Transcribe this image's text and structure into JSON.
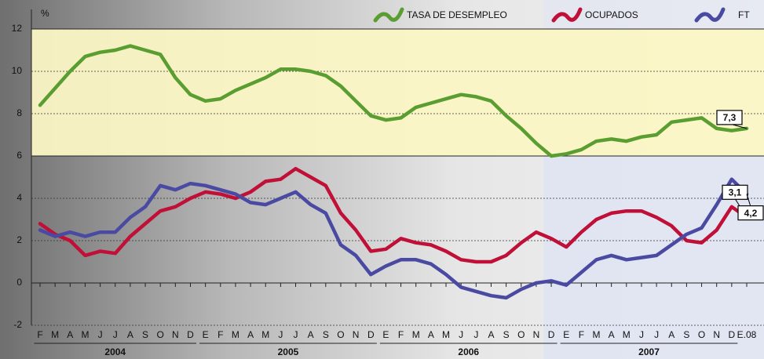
{
  "chart_data": {
    "type": "line",
    "y_label": "%",
    "categories": [
      "F",
      "M",
      "A",
      "M",
      "J",
      "J",
      "A",
      "S",
      "O",
      "N",
      "D",
      "E",
      "F",
      "M",
      "A",
      "M",
      "J",
      "J",
      "A",
      "S",
      "O",
      "N",
      "D",
      "E",
      "F",
      "M",
      "A",
      "M",
      "J",
      "J",
      "A",
      "S",
      "O",
      "N",
      "D",
      "E",
      "F",
      "M",
      "A",
      "M",
      "J",
      "J",
      "A",
      "S",
      "O",
      "N",
      "D",
      "E.08"
    ],
    "years": [
      "2004",
      "2005",
      "2006",
      "2007"
    ],
    "series": [
      {
        "name": "TASA DE DESEMPLEO",
        "color": "#5a9e32",
        "values": [
          8.4,
          9.2,
          10.0,
          10.7,
          10.9,
          11.0,
          11.2,
          11.0,
          10.8,
          9.7,
          8.9,
          8.6,
          8.7,
          9.1,
          9.4,
          9.7,
          10.1,
          10.1,
          10.0,
          9.8,
          9.3,
          8.6,
          7.9,
          7.7,
          7.8,
          8.3,
          8.5,
          8.7,
          8.9,
          8.8,
          8.6,
          7.9,
          7.3,
          6.6,
          6.0,
          6.1,
          6.3,
          6.7,
          6.8,
          6.7,
          6.9,
          7.0,
          7.6,
          7.7,
          7.8,
          7.3,
          7.2,
          7.3
        ],
        "value_labels": [
          null,
          null,
          null,
          null,
          null,
          null,
          null,
          null,
          null,
          null,
          null,
          null,
          null,
          null,
          null,
          null,
          null,
          null,
          null,
          null,
          null,
          null,
          null,
          null,
          null,
          null,
          null,
          null,
          null,
          null,
          null,
          null,
          null,
          null,
          null,
          null,
          null,
          null,
          null,
          null,
          null,
          null,
          null,
          null,
          null,
          null,
          null,
          "7,3"
        ]
      },
      {
        "name": "OCUPADOS",
        "color": "#c01038",
        "values": [
          2.8,
          2.3,
          2.0,
          1.3,
          1.5,
          1.4,
          2.2,
          2.8,
          3.4,
          3.6,
          4.0,
          4.3,
          4.2,
          4.0,
          4.3,
          4.8,
          4.9,
          5.4,
          5.0,
          4.6,
          3.3,
          2.5,
          1.5,
          1.6,
          2.1,
          1.9,
          1.8,
          1.5,
          1.1,
          1.0,
          1.0,
          1.3,
          1.9,
          2.4,
          2.1,
          1.7,
          2.4,
          3.0,
          3.3,
          3.4,
          3.4,
          3.1,
          2.7,
          2.0,
          1.9,
          2.5,
          3.6,
          3.1
        ],
        "value_labels": [
          null,
          null,
          null,
          null,
          null,
          null,
          null,
          null,
          null,
          null,
          null,
          null,
          null,
          null,
          null,
          null,
          null,
          null,
          null,
          null,
          null,
          null,
          null,
          null,
          null,
          null,
          null,
          null,
          null,
          null,
          null,
          null,
          null,
          null,
          null,
          null,
          null,
          null,
          null,
          null,
          null,
          null,
          null,
          null,
          null,
          null,
          null,
          "3,1"
        ]
      },
      {
        "name": "FT",
        "color": "#4a4aa2",
        "values": [
          2.5,
          2.2,
          2.4,
          2.2,
          2.4,
          2.4,
          3.1,
          3.6,
          4.6,
          4.4,
          4.7,
          4.6,
          4.4,
          4.2,
          3.8,
          3.7,
          4.0,
          4.3,
          3.7,
          3.3,
          1.8,
          1.3,
          0.4,
          0.8,
          1.1,
          1.1,
          0.9,
          0.4,
          -0.2,
          -0.4,
          -0.6,
          -0.7,
          -0.3,
          0.0,
          0.1,
          -0.1,
          0.5,
          1.1,
          1.3,
          1.1,
          1.2,
          1.3,
          1.8,
          2.3,
          2.6,
          3.7,
          4.9,
          4.2
        ],
        "value_labels": [
          null,
          null,
          null,
          null,
          null,
          null,
          null,
          null,
          null,
          null,
          null,
          null,
          null,
          null,
          null,
          null,
          null,
          null,
          null,
          null,
          null,
          null,
          null,
          null,
          null,
          null,
          null,
          null,
          null,
          null,
          null,
          null,
          null,
          null,
          null,
          null,
          null,
          null,
          null,
          null,
          null,
          null,
          null,
          null,
          null,
          null,
          null,
          "4,2"
        ]
      }
    ],
    "ylim": [
      -2,
      12
    ],
    "yticks": [
      -2,
      0,
      2,
      4,
      6,
      8,
      10,
      12
    ],
    "shaded_band": [
      6,
      12
    ],
    "grid": true
  }
}
